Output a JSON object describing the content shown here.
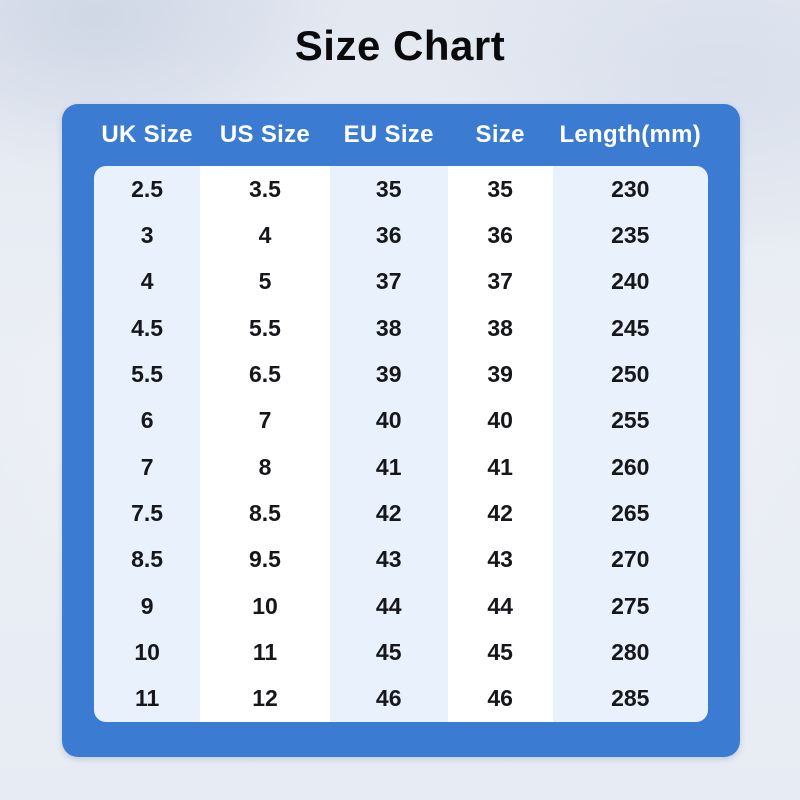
{
  "title": "Size Chart",
  "table": {
    "headers": [
      "UK Size",
      "US Size",
      "EU Size",
      "Size",
      "Length(mm)"
    ],
    "rows": [
      [
        "2.5",
        "3.5",
        "35",
        "35",
        "230"
      ],
      [
        "3",
        "4",
        "36",
        "36",
        "235"
      ],
      [
        "4",
        "5",
        "37",
        "37",
        "240"
      ],
      [
        "4.5",
        "5.5",
        "38",
        "38",
        "245"
      ],
      [
        "5.5",
        "6.5",
        "39",
        "39",
        "250"
      ],
      [
        "6",
        "7",
        "40",
        "40",
        "255"
      ],
      [
        "7",
        "8",
        "41",
        "41",
        "260"
      ],
      [
        "7.5",
        "8.5",
        "42",
        "42",
        "265"
      ],
      [
        "8.5",
        "9.5",
        "43",
        "43",
        "270"
      ],
      [
        "9",
        "10",
        "44",
        "44",
        "275"
      ],
      [
        "10",
        "11",
        "45",
        "45",
        "280"
      ],
      [
        "11",
        "12",
        "46",
        "46",
        "285"
      ]
    ]
  },
  "chart_data": {
    "type": "table",
    "title": "Size Chart",
    "columns": [
      "UK Size",
      "US Size",
      "EU Size",
      "Size",
      "Length(mm)"
    ],
    "rows": [
      [
        "2.5",
        "3.5",
        "35",
        "35",
        "230"
      ],
      [
        "3",
        "4",
        "36",
        "36",
        "235"
      ],
      [
        "4",
        "5",
        "37",
        "37",
        "240"
      ],
      [
        "4.5",
        "5.5",
        "38",
        "38",
        "245"
      ],
      [
        "5.5",
        "6.5",
        "39",
        "39",
        "250"
      ],
      [
        "6",
        "7",
        "40",
        "40",
        "255"
      ],
      [
        "7",
        "8",
        "41",
        "41",
        "260"
      ],
      [
        "7.5",
        "8.5",
        "42",
        "42",
        "265"
      ],
      [
        "8.5",
        "9.5",
        "43",
        "43",
        "270"
      ],
      [
        "9",
        "10",
        "44",
        "44",
        "275"
      ],
      [
        "10",
        "11",
        "45",
        "45",
        "280"
      ],
      [
        "11",
        "12",
        "46",
        "46",
        "285"
      ]
    ],
    "layout": {
      "column_striping": [
        "shaded",
        "plain",
        "shaded",
        "plain",
        "shaded"
      ],
      "header_background": "#3b7cd2",
      "header_text_color": "#ffffff",
      "shaded_column_color": "#e9f1fc"
    }
  },
  "colors": {
    "panel_blue": "#3b7cd2",
    "light_column": "#e9f1fc",
    "white_column": "#ffffff",
    "header_text": "#ffffff",
    "body_text": "#16171b",
    "title_text": "#0a0a0c"
  }
}
